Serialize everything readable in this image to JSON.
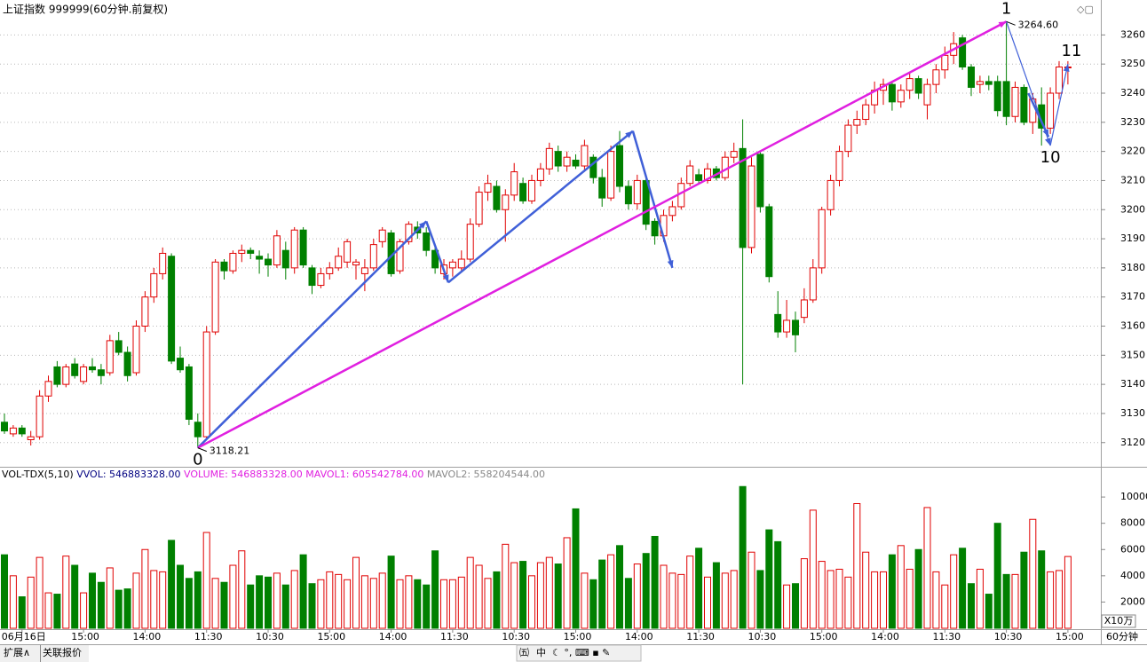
{
  "header": {
    "title": "上证指数 999999(60分钟.前复权)",
    "indicator": [
      "VOL-TDX(5,10)",
      "VVOL: 546883328.00",
      "VOLUME: 546883328.00",
      "MAVOL1: 605542784.00",
      "MAVOL2: 558204544.00"
    ],
    "volume_unit": "X10万",
    "period": "60分钟"
  },
  "footer": {
    "tabs": [
      "扩展∧",
      "关联报价"
    ],
    "ime": "中"
  },
  "chart_data": [
    {
      "type": "candlestick",
      "up_color": "#e00000",
      "down_color": "#008000",
      "ylim": [
        3112,
        3272
      ],
      "yticks": [
        3120,
        3130,
        3140,
        3150,
        3160,
        3170,
        3180,
        3190,
        3200,
        3210,
        3220,
        3230,
        3240,
        3250,
        3260
      ],
      "grid": true,
      "ohlc": [
        [
          3127,
          3130,
          3123,
          3124
        ],
        [
          3123,
          3126,
          3122,
          3125
        ],
        [
          3125,
          3126,
          3122,
          3123
        ],
        [
          3121,
          3124,
          3119,
          3122
        ],
        [
          3122,
          3138,
          3121,
          3136
        ],
        [
          3136,
          3143,
          3134,
          3141
        ],
        [
          3146,
          3148,
          3139,
          3140
        ],
        [
          3140,
          3147,
          3139,
          3146
        ],
        [
          3147,
          3149,
          3142,
          3143
        ],
        [
          3141,
          3147,
          3140,
          3146
        ],
        [
          3146,
          3149,
          3144,
          3145
        ],
        [
          3145,
          3147,
          3140,
          3143
        ],
        [
          3144,
          3157,
          3143,
          3155
        ],
        [
          3155,
          3158,
          3150,
          3151
        ],
        [
          3151,
          3153,
          3141,
          3143
        ],
        [
          3144,
          3162,
          3143,
          3160
        ],
        [
          3160,
          3172,
          3158,
          3170
        ],
        [
          3170,
          3180,
          3168,
          3178
        ],
        [
          3178,
          3187,
          3176,
          3185
        ],
        [
          3184,
          3185,
          3147,
          3148
        ],
        [
          3149,
          3153,
          3144,
          3145
        ],
        [
          3146,
          3147,
          3126,
          3128
        ],
        [
          3127,
          3130,
          3118.21,
          3122
        ],
        [
          3122,
          3160,
          3121,
          3158
        ],
        [
          3158,
          3183,
          3157,
          3182
        ],
        [
          3182,
          3183,
          3176,
          3179
        ],
        [
          3179,
          3186,
          3178,
          3185
        ],
        [
          3185,
          3188,
          3182,
          3186
        ],
        [
          3186,
          3187,
          3183,
          3185
        ],
        [
          3184,
          3186,
          3178,
          3183
        ],
        [
          3183,
          3185,
          3177,
          3181
        ],
        [
          3181,
          3193,
          3180,
          3191
        ],
        [
          3186,
          3189,
          3176,
          3180
        ],
        [
          3180,
          3194,
          3178,
          3193
        ],
        [
          3193,
          3194,
          3180,
          3181
        ],
        [
          3180,
          3181,
          3171,
          3174
        ],
        [
          3174,
          3180,
          3173,
          3178
        ],
        [
          3178,
          3182,
          3176,
          3180
        ],
        [
          3180,
          3187,
          3179,
          3184
        ],
        [
          3182,
          3190,
          3180,
          3189
        ],
        [
          3181,
          3183,
          3176,
          3182
        ],
        [
          3178,
          3183,
          3172,
          3180
        ],
        [
          3180,
          3190,
          3179,
          3188
        ],
        [
          3189,
          3194,
          3187,
          3193
        ],
        [
          3192,
          3193,
          3177,
          3178
        ],
        [
          3179,
          3190,
          3178,
          3189
        ],
        [
          3189,
          3196,
          3188,
          3195
        ],
        [
          3194,
          3196,
          3190,
          3192
        ],
        [
          3192,
          3194,
          3184,
          3186
        ],
        [
          3186,
          3187,
          3178,
          3180
        ],
        [
          3178,
          3183,
          3176,
          3181
        ],
        [
          3180,
          3183,
          3177,
          3182
        ],
        [
          3180,
          3186,
          3179,
          3183
        ],
        [
          3183,
          3197,
          3182,
          3195
        ],
        [
          3195,
          3208,
          3194,
          3206
        ],
        [
          3206,
          3212,
          3203,
          3209
        ],
        [
          3208,
          3210,
          3199,
          3200
        ],
        [
          3200,
          3207,
          3189,
          3205
        ],
        [
          3205,
          3216,
          3203,
          3213
        ],
        [
          3209,
          3211,
          3202,
          3203
        ],
        [
          3203,
          3212,
          3202,
          3210
        ],
        [
          3210,
          3216,
          3208,
          3214
        ],
        [
          3214,
          3223,
          3212,
          3221
        ],
        [
          3220,
          3222,
          3213,
          3215
        ],
        [
          3215,
          3220,
          3213,
          3218
        ],
        [
          3217,
          3219,
          3214,
          3215
        ],
        [
          3215,
          3224,
          3213,
          3222
        ],
        [
          3218,
          3219,
          3209,
          3211
        ],
        [
          3211,
          3214,
          3201,
          3204
        ],
        [
          3204,
          3222,
          3203,
          3220
        ],
        [
          3222,
          3227,
          3206,
          3208
        ],
        [
          3208,
          3210,
          3200,
          3202
        ],
        [
          3202,
          3212,
          3200,
          3210
        ],
        [
          3210,
          3211,
          3193,
          3195
        ],
        [
          3196,
          3197,
          3188,
          3191
        ],
        [
          3191,
          3200,
          3189,
          3198
        ],
        [
          3198,
          3203,
          3196,
          3201
        ],
        [
          3201,
          3211,
          3200,
          3209
        ],
        [
          3209,
          3217,
          3208,
          3215
        ],
        [
          3212,
          3214,
          3209,
          3210
        ],
        [
          3210,
          3216,
          3209,
          3214
        ],
        [
          3214,
          3215,
          3210,
          3211
        ],
        [
          3211,
          3220,
          3210,
          3218
        ],
        [
          3218,
          3223,
          3216,
          3220
        ],
        [
          3221,
          3231,
          3140,
          3187
        ],
        [
          3187,
          3218,
          3185,
          3215
        ],
        [
          3219,
          3220,
          3199,
          3201
        ],
        [
          3201,
          3202,
          3175,
          3177
        ],
        [
          3164,
          3172,
          3156,
          3158
        ],
        [
          3158,
          3169,
          3156,
          3162
        ],
        [
          3162,
          3165,
          3151,
          3157
        ],
        [
          3163,
          3173,
          3161,
          3169
        ],
        [
          3169,
          3183,
          3168,
          3180
        ],
        [
          3180,
          3201,
          3178,
          3200
        ],
        [
          3200,
          3212,
          3198,
          3210
        ],
        [
          3210,
          3222,
          3208,
          3220
        ],
        [
          3220,
          3231,
          3218,
          3229
        ],
        [
          3229,
          3234,
          3226,
          3231
        ],
        [
          3231,
          3238,
          3229,
          3236
        ],
        [
          3236,
          3244,
          3233,
          3241
        ],
        [
          3241,
          3245,
          3236,
          3243
        ],
        [
          3243,
          3244,
          3234,
          3237
        ],
        [
          3237,
          3243,
          3235,
          3241
        ],
        [
          3241,
          3247,
          3238,
          3245
        ],
        [
          3245,
          3246,
          3238,
          3240
        ],
        [
          3236,
          3245,
          3231,
          3243
        ],
        [
          3243,
          3250,
          3240,
          3248
        ],
        [
          3248,
          3256,
          3245,
          3253
        ],
        [
          3253,
          3261,
          3250,
          3257
        ],
        [
          3259,
          3260,
          3248,
          3249
        ],
        [
          3249,
          3250,
          3239,
          3242
        ],
        [
          3243,
          3246,
          3240,
          3244
        ],
        [
          3244,
          3246,
          3241,
          3243
        ],
        [
          3244,
          3246,
          3232,
          3234
        ],
        [
          3244,
          3264.6,
          3229,
          3232
        ],
        [
          3232,
          3244,
          3230,
          3242
        ],
        [
          3242,
          3243,
          3229,
          3230
        ],
        [
          3230,
          3240,
          3226,
          3238
        ],
        [
          3236,
          3242,
          3222,
          3228
        ],
        [
          3228,
          3242,
          3226,
          3240
        ],
        [
          3240,
          3251,
          3238,
          3249
        ],
        [
          3249,
          3251,
          3243,
          3249
        ]
      ],
      "price_labels": [
        {
          "index": 22,
          "value": 3118.21,
          "label": "3118.21"
        },
        {
          "index": 114,
          "value": 3264.6,
          "label": "3264.60"
        }
      ],
      "wave_labels": [
        {
          "label": "0",
          "index": 22,
          "price": 3118.21
        },
        {
          "label": "1",
          "index": 114,
          "price": 3264.6
        },
        {
          "label": "10",
          "index": 119,
          "price": 3222
        },
        {
          "label": "11",
          "index": 121,
          "price": 3250
        }
      ],
      "wave_lines": [
        {
          "color": "#4060d8",
          "points": [
            [
              22,
              3118.21
            ],
            [
              48,
              3196
            ]
          ]
        },
        {
          "color": "#4060d8",
          "points": [
            [
              48,
              3196
            ],
            [
              50.5,
              3175
            ]
          ]
        },
        {
          "color": "#4060d8",
          "points": [
            [
              50.5,
              3175
            ],
            [
              71.5,
              3227
            ]
          ]
        },
        {
          "color": "#4060d8",
          "points": [
            [
              71.5,
              3227
            ],
            [
              76,
              3180
            ]
          ]
        },
        {
          "color": "#e020e0",
          "points": [
            [
              22,
              3118.21
            ],
            [
              114,
              3264.6
            ]
          ]
        },
        {
          "color": "#4060d8",
          "points": [
            [
              114,
              3264.6
            ],
            [
              119,
              3222
            ]
          ]
        },
        {
          "color": "#4060d8",
          "points": [
            [
              119,
              3222
            ],
            [
              121,
              3250
            ]
          ]
        },
        {
          "color": "#4060d8",
          "points": [
            [
              116.5,
              3240
            ],
            [
              118.8,
              3225
            ]
          ]
        }
      ]
    },
    {
      "type": "bar",
      "ylim": [
        0,
        11900
      ],
      "yticks": [
        2000,
        4000,
        6000,
        8000,
        10000
      ],
      "categories": [
        null,
        null,
        "06月16日",
        null,
        null,
        null,
        null,
        null,
        null,
        "15:00",
        null,
        null,
        null,
        null,
        null,
        null,
        "14:00",
        null,
        null,
        null,
        null,
        null,
        null,
        "11:30",
        null,
        null,
        null,
        null,
        null,
        null,
        "10:30",
        null,
        null,
        null,
        null,
        null,
        null,
        "15:00",
        null,
        null,
        null,
        null,
        null,
        null,
        "14:00",
        null,
        null,
        null,
        null,
        null,
        null,
        "11:30",
        null,
        null,
        null,
        null,
        null,
        null,
        "10:30",
        null,
        null,
        null,
        null,
        null,
        null,
        "15:00",
        null,
        null,
        null,
        null,
        null,
        null,
        "14:00",
        null,
        null,
        null,
        null,
        null,
        null,
        "11:30",
        null,
        null,
        null,
        null,
        null,
        null,
        "10:30",
        null,
        null,
        null,
        null,
        null,
        null,
        "15:00",
        null,
        null,
        null,
        null,
        null,
        null,
        "14:00",
        null,
        null,
        null,
        null,
        null,
        null,
        "11:30",
        null,
        null,
        null,
        null,
        null,
        null,
        "10:30",
        null,
        null,
        null,
        null,
        null,
        null,
        "15:00"
      ],
      "values": [
        5600,
        4000,
        2400,
        3900,
        5400,
        2700,
        2600,
        5500,
        4800,
        2700,
        4200,
        3500,
        4600,
        2900,
        3000,
        4200,
        6000,
        4400,
        4300,
        6700,
        4800,
        3800,
        4300,
        7300,
        3800,
        3500,
        4800,
        5900,
        3300,
        4000,
        3900,
        4200,
        3300,
        4400,
        5600,
        3400,
        3700,
        4300,
        4100,
        3700,
        5400,
        4000,
        3800,
        4200,
        5500,
        3700,
        4000,
        3700,
        3300,
        5900,
        3700,
        3700,
        3900,
        5400,
        4800,
        3800,
        4300,
        6400,
        5000,
        5100,
        4000,
        5000,
        5400,
        4900,
        6900,
        9100,
        4200,
        3700,
        5200,
        5600,
        6300,
        3800,
        4900,
        5700,
        7000,
        4800,
        4200,
        4100,
        5500,
        6100,
        3900,
        5000,
        4200,
        4400,
        10800,
        5800,
        4400,
        7500,
        6600,
        3300,
        3400,
        5300,
        9000,
        5100,
        4400,
        4500,
        3900,
        9500,
        5800,
        4300,
        4300,
        5600,
        6300,
        4500,
        6000,
        9200,
        4300,
        3300,
        5600,
        6100,
        3400,
        4500,
        2600,
        8000,
        4100,
        4100,
        5800,
        8300,
        5900,
        4300,
        4400,
        5469
      ]
    }
  ]
}
